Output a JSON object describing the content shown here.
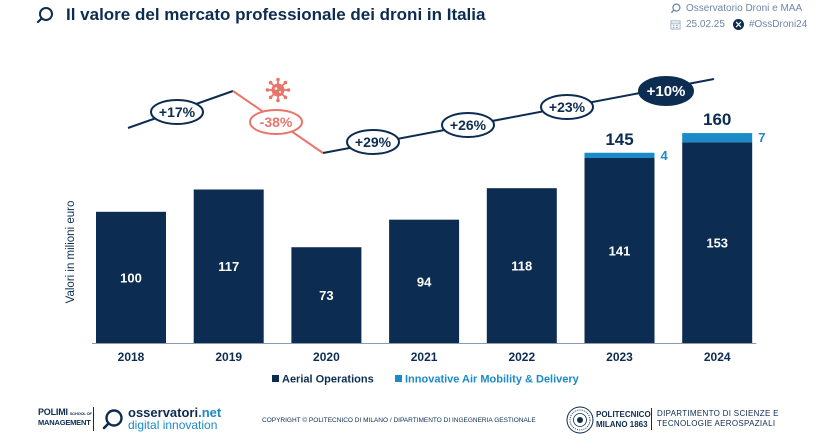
{
  "header": {
    "title": "Il valore del mercato professionale dei droni in Italia",
    "source": "Osservatorio Droni e MAA",
    "date": "25.02.25",
    "hashtag": "#OssDroni24"
  },
  "chart_data": {
    "type": "bar",
    "stacked": true,
    "categories": [
      "2018",
      "2019",
      "2020",
      "2021",
      "2022",
      "2023",
      "2024"
    ],
    "series": [
      {
        "name": "Aerial Operations",
        "color": "#0d2c52",
        "values": [
          100,
          117,
          73,
          94,
          118,
          141,
          153
        ]
      },
      {
        "name": "Innovative Air Mobility & Delivery",
        "color": "#1a8ac8",
        "values": [
          0,
          0,
          0,
          0,
          0,
          4,
          7
        ]
      }
    ],
    "totals": [
      null,
      null,
      null,
      null,
      null,
      145,
      160
    ],
    "growth": [
      "+17%",
      "-38%",
      "+29%",
      "+26%",
      "+23%",
      "+10%"
    ],
    "ylabel": "Valori in milioni euro",
    "xlabel": "",
    "ylim": [
      0,
      160
    ],
    "legend_position": "bottom-left",
    "grid": false,
    "colors": {
      "primary": "#0d2c52",
      "accent": "#1a8ac8",
      "negative": "#e9756a",
      "highlight": "#0d2c52"
    }
  },
  "footer": {
    "polimi_line1": "POLIMI",
    "polimi_line2": "SCHOOL OF",
    "polimi_line3": "MANAGEMENT",
    "oss_name_a": "osservatori",
    "oss_name_b": ".net",
    "oss_sub": "digital innovation",
    "copyright": "COPYRIGHT © POLITECNICO DI MILANO / DIPARTIMENTO DI INGEGNERIA GESTIONALE",
    "poli_line1": "POLITECNICO",
    "poli_line2": "MILANO 1863",
    "dept_line1": "DIPARTIMENTO DI SCIENZE E",
    "dept_line2": "TECNOLOGIE AEROSPAZIALI"
  }
}
